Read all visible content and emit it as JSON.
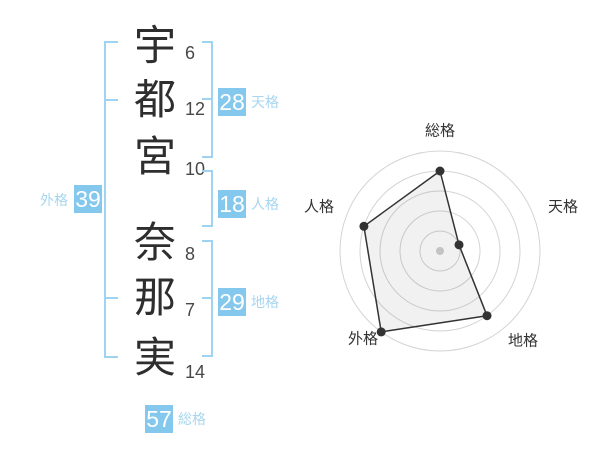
{
  "name_chart": {
    "characters": [
      {
        "char": "宇",
        "strokes": "6"
      },
      {
        "char": "都",
        "strokes": "12"
      },
      {
        "char": "宮",
        "strokes": "10"
      },
      {
        "char": "奈",
        "strokes": "8"
      },
      {
        "char": "那",
        "strokes": "7"
      },
      {
        "char": "実",
        "strokes": "14"
      }
    ],
    "tenkaku": {
      "label": "天格",
      "value": "28"
    },
    "jinkaku": {
      "label": "人格",
      "value": "18"
    },
    "chikaku": {
      "label": "地格",
      "value": "29"
    },
    "gaikaku": {
      "label": "外格",
      "value": "39"
    },
    "soukaku": {
      "label": "総格",
      "value": "57"
    }
  },
  "chart_data": {
    "type": "radar",
    "axes": [
      "総格",
      "天格",
      "地格",
      "外格",
      "人格"
    ],
    "values": [
      4,
      1,
      4,
      5,
      4
    ],
    "max": 5,
    "rings": 5,
    "grid": "concentric-circles",
    "legend": false
  },
  "colors": {
    "accent_box": "#85c8ed",
    "accent_line": "#9ed3f1",
    "accent_label": "#a7d6ef",
    "text_dark": "#2e2e2e",
    "radar_ring": "#d4d4d4",
    "radar_stroke": "#333333",
    "radar_fill": "rgba(0,0,0,0.055)",
    "radar_center_dot": "#c3c3c3"
  }
}
